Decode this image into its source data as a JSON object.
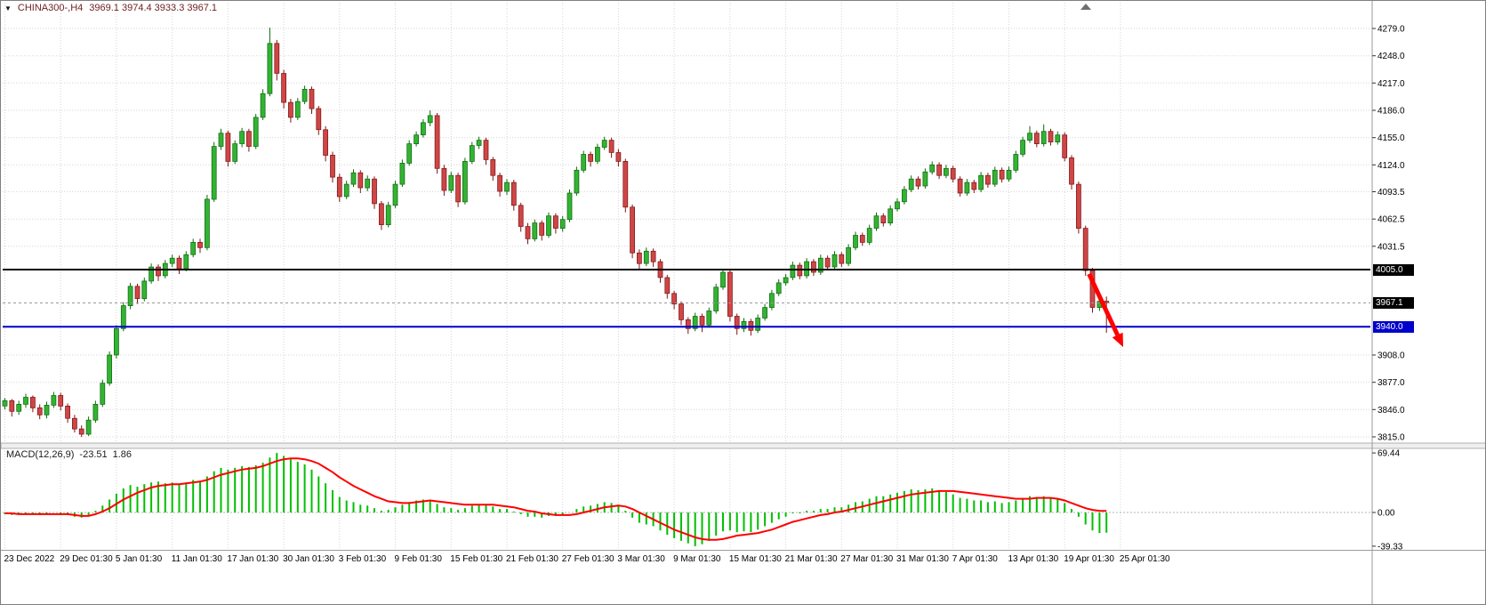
{
  "header": {
    "collapse_icon": "▼",
    "symbol_period": "CHINA300-,H4",
    "ohlc": "3969.1 3974.4 3933.3 3967.1"
  },
  "price_tags": {
    "resistance": "4005.0",
    "current": "3967.1",
    "support": "3940.0"
  },
  "chart_data": {
    "type": "candlestick",
    "symbol": "CHINA300-",
    "timeframe": "H4",
    "last_bar": {
      "open": 3969.1,
      "high": 3974.4,
      "low": 3933.3,
      "close": 3967.1
    },
    "price_axis": {
      "min": 3815.0,
      "max": 4279.0,
      "ticks": [
        4279.0,
        4248.0,
        4217.0,
        4186.0,
        4155.0,
        4124.0,
        4093.5,
        4062.5,
        4031.5,
        3908.0,
        3877.0,
        3846.0,
        3815.0
      ]
    },
    "hlines": [
      {
        "name": "resistance-line",
        "price": 4005.0,
        "color": "#000000",
        "width": 2,
        "dash": ""
      },
      {
        "name": "current-price-line",
        "price": 3967.1,
        "color": "#9a9a9a",
        "width": 1,
        "dash": "3 3"
      },
      {
        "name": "support-line",
        "price": 3940.0,
        "color": "#0000cc",
        "width": 2,
        "dash": ""
      }
    ],
    "time_axis": {
      "labels": [
        "23 Dec 2022",
        "29 Dec 01:30",
        "5 Jan 01:30",
        "11 Jan 01:30",
        "17 Jan 01:30",
        "30 Jan 01:30",
        "3 Feb 01:30",
        "9 Feb 01:30",
        "15 Feb 01:30",
        "21 Feb 01:30",
        "27 Feb 01:30",
        "3 Mar 01:30",
        "9 Mar 01:30",
        "15 Mar 01:30",
        "21 Mar 01:30",
        "27 Mar 01:30",
        "31 Mar 01:30",
        "7 Apr 01:30",
        "13 Apr 01:30",
        "19 Apr 01:30",
        "25 Apr 01:30"
      ]
    },
    "colors": {
      "up_fill": "#33b333",
      "up_edge": "#0e6b0e",
      "down_fill": "#cf4646",
      "down_edge": "#801515",
      "grid": "#d6d6d6",
      "axis_text": "#000000"
    },
    "arrow": {
      "color": "#ff0000",
      "from": {
        "bar": 155.5,
        "price": 4000
      },
      "to": {
        "bar": 160.4,
        "price": 3917
      }
    },
    "candles": [
      [
        3850,
        3859,
        3846,
        3856
      ],
      [
        3856,
        3858,
        3838,
        3844
      ],
      [
        3844,
        3856,
        3840,
        3852
      ],
      [
        3852,
        3864,
        3848,
        3860
      ],
      [
        3860,
        3862,
        3843,
        3848
      ],
      [
        3848,
        3852,
        3835,
        3840
      ],
      [
        3840,
        3855,
        3836,
        3851
      ],
      [
        3851,
        3866,
        3848,
        3862
      ],
      [
        3862,
        3865,
        3845,
        3850
      ],
      [
        3850,
        3853,
        3831,
        3836
      ],
      [
        3836,
        3840,
        3820,
        3824
      ],
      [
        3824,
        3828,
        3815,
        3818
      ],
      [
        3818,
        3838,
        3816,
        3834
      ],
      [
        3834,
        3856,
        3831,
        3852
      ],
      [
        3852,
        3880,
        3849,
        3876
      ],
      [
        3876,
        3912,
        3873,
        3908
      ],
      [
        3908,
        3942,
        3904,
        3938
      ],
      [
        3938,
        3968,
        3935,
        3964
      ],
      [
        3964,
        3990,
        3960,
        3986
      ],
      [
        3986,
        3989,
        3966,
        3972
      ],
      [
        3972,
        3996,
        3969,
        3992
      ],
      [
        3992,
        4012,
        3989,
        4008
      ],
      [
        4008,
        4011,
        3992,
        3998
      ],
      [
        3998,
        4016,
        3995,
        4012
      ],
      [
        4012,
        4022,
        4008,
        4018
      ],
      [
        4018,
        4021,
        4000,
        4006
      ],
      [
        4006,
        4026,
        4003,
        4022
      ],
      [
        4022,
        4040,
        4019,
        4036
      ],
      [
        4036,
        4040,
        4024,
        4030
      ],
      [
        4030,
        4090,
        4027,
        4085
      ],
      [
        4085,
        4150,
        4082,
        4145
      ],
      [
        4145,
        4165,
        4141,
        4160
      ],
      [
        4160,
        4163,
        4122,
        4128
      ],
      [
        4128,
        4152,
        4125,
        4148
      ],
      [
        4148,
        4166,
        4144,
        4162
      ],
      [
        4162,
        4165,
        4139,
        4145
      ],
      [
        4145,
        4182,
        4142,
        4178
      ],
      [
        4178,
        4210,
        4175,
        4205
      ],
      [
        4205,
        4280,
        4202,
        4262
      ],
      [
        4262,
        4266,
        4220,
        4228
      ],
      [
        4228,
        4232,
        4188,
        4195
      ],
      [
        4195,
        4199,
        4172,
        4178
      ],
      [
        4178,
        4200,
        4175,
        4196
      ],
      [
        4196,
        4214,
        4193,
        4210
      ],
      [
        4210,
        4213,
        4182,
        4188
      ],
      [
        4188,
        4191,
        4158,
        4164
      ],
      [
        4164,
        4168,
        4128,
        4135
      ],
      [
        4135,
        4139,
        4104,
        4110
      ],
      [
        4110,
        4114,
        4082,
        4088
      ],
      [
        4088,
        4106,
        4085,
        4102
      ],
      [
        4102,
        4119,
        4099,
        4115
      ],
      [
        4115,
        4118,
        4092,
        4098
      ],
      [
        4098,
        4112,
        4094,
        4108
      ],
      [
        4108,
        4111,
        4074,
        4080
      ],
      [
        4080,
        4083,
        4050,
        4056
      ],
      [
        4056,
        4082,
        4053,
        4078
      ],
      [
        4078,
        4106,
        4075,
        4102
      ],
      [
        4102,
        4130,
        4099,
        4126
      ],
      [
        4126,
        4152,
        4123,
        4148
      ],
      [
        4148,
        4162,
        4145,
        4158
      ],
      [
        4158,
        4176,
        4155,
        4172
      ],
      [
        4172,
        4186,
        4168,
        4180
      ],
      [
        4180,
        4183,
        4114,
        4120
      ],
      [
        4120,
        4124,
        4089,
        4095
      ],
      [
        4095,
        4116,
        4092,
        4112
      ],
      [
        4112,
        4115,
        4076,
        4082
      ],
      [
        4082,
        4132,
        4079,
        4128
      ],
      [
        4128,
        4150,
        4125,
        4146
      ],
      [
        4146,
        4156,
        4142,
        4152
      ],
      [
        4152,
        4155,
        4124,
        4130
      ],
      [
        4130,
        4133,
        4106,
        4112
      ],
      [
        4112,
        4115,
        4088,
        4094
      ],
      [
        4094,
        4108,
        4090,
        4104
      ],
      [
        4104,
        4107,
        4072,
        4078
      ],
      [
        4078,
        4081,
        4048,
        4054
      ],
      [
        4054,
        4058,
        4034,
        4040
      ],
      [
        4040,
        4062,
        4037,
        4058
      ],
      [
        4058,
        4061,
        4038,
        4044
      ],
      [
        4044,
        4070,
        4041,
        4066
      ],
      [
        4066,
        4069,
        4046,
        4052
      ],
      [
        4052,
        4066,
        4048,
        4062
      ],
      [
        4062,
        4096,
        4059,
        4092
      ],
      [
        4092,
        4122,
        4089,
        4118
      ],
      [
        4118,
        4140,
        4115,
        4136
      ],
      [
        4136,
        4139,
        4122,
        4128
      ],
      [
        4128,
        4148,
        4125,
        4144
      ],
      [
        4144,
        4156,
        4141,
        4152
      ],
      [
        4152,
        4155,
        4132,
        4138
      ],
      [
        4138,
        4142,
        4122,
        4128
      ],
      [
        4128,
        4131,
        4070,
        4076
      ],
      [
        4076,
        4079,
        4018,
        4024
      ],
      [
        4024,
        4028,
        4006,
        4012
      ],
      [
        4012,
        4030,
        4009,
        4026
      ],
      [
        4026,
        4029,
        4008,
        4014
      ],
      [
        4014,
        4017,
        3990,
        3996
      ],
      [
        3996,
        3999,
        3972,
        3978
      ],
      [
        3978,
        3981,
        3960,
        3966
      ],
      [
        3966,
        3969,
        3942,
        3948
      ],
      [
        3948,
        3951,
        3932,
        3938
      ],
      [
        3938,
        3956,
        3935,
        3952
      ],
      [
        3952,
        3955,
        3934,
        3942
      ],
      [
        3942,
        3962,
        3939,
        3958
      ],
      [
        3958,
        3989,
        3955,
        3985
      ],
      [
        3985,
        4006,
        3982,
        4002
      ],
      [
        4002,
        4005,
        3946,
        3952
      ],
      [
        3952,
        3955,
        3931,
        3938
      ],
      [
        3938,
        3950,
        3934,
        3946
      ],
      [
        3946,
        3949,
        3930,
        3936
      ],
      [
        3936,
        3954,
        3933,
        3950
      ],
      [
        3950,
        3966,
        3947,
        3962
      ],
      [
        3962,
        3982,
        3959,
        3978
      ],
      [
        3978,
        3994,
        3975,
        3990
      ],
      [
        3990,
        4000,
        3987,
        3996
      ],
      [
        3996,
        4014,
        3993,
        4010
      ],
      [
        4010,
        4013,
        3994,
        3998
      ],
      [
        3998,
        4018,
        3995,
        4014
      ],
      [
        4014,
        4017,
        3998,
        4002
      ],
      [
        4002,
        4022,
        3999,
        4018
      ],
      [
        4018,
        4021,
        4004,
        4008
      ],
      [
        4008,
        4026,
        4005,
        4022
      ],
      [
        4022,
        4025,
        4008,
        4012
      ],
      [
        4012,
        4034,
        4009,
        4030
      ],
      [
        4030,
        4048,
        4027,
        4044
      ],
      [
        4044,
        4047,
        4032,
        4036
      ],
      [
        4036,
        4056,
        4033,
        4052
      ],
      [
        4052,
        4070,
        4049,
        4066
      ],
      [
        4066,
        4069,
        4054,
        4058
      ],
      [
        4058,
        4078,
        4055,
        4074
      ],
      [
        4074,
        4086,
        4071,
        4082
      ],
      [
        4082,
        4100,
        4079,
        4096
      ],
      [
        4096,
        4112,
        4093,
        4108
      ],
      [
        4108,
        4111,
        4096,
        4100
      ],
      [
        4100,
        4120,
        4097,
        4116
      ],
      [
        4116,
        4128,
        4113,
        4124
      ],
      [
        4124,
        4127,
        4108,
        4112
      ],
      [
        4112,
        4124,
        4109,
        4120
      ],
      [
        4120,
        4123,
        4104,
        4108
      ],
      [
        4108,
        4111,
        4088,
        4092
      ],
      [
        4092,
        4108,
        4089,
        4104
      ],
      [
        4104,
        4107,
        4092,
        4096
      ],
      [
        4096,
        4116,
        4093,
        4112
      ],
      [
        4112,
        4115,
        4098,
        4102
      ],
      [
        4102,
        4122,
        4099,
        4118
      ],
      [
        4118,
        4121,
        4104,
        4108
      ],
      [
        4108,
        4122,
        4105,
        4118
      ],
      [
        4118,
        4140,
        4115,
        4136
      ],
      [
        4136,
        4156,
        4133,
        4152
      ],
      [
        4152,
        4168,
        4149,
        4160
      ],
      [
        4160,
        4163,
        4144,
        4148
      ],
      [
        4148,
        4170,
        4145,
        4162
      ],
      [
        4162,
        4165,
        4146,
        4150
      ],
      [
        4150,
        4162,
        4147,
        4158
      ],
      [
        4158,
        4161,
        4128,
        4132
      ],
      [
        4132,
        4135,
        4096,
        4102
      ],
      [
        4102,
        4105,
        4046,
        4052
      ],
      [
        4052,
        4055,
        3998,
        4004
      ],
      [
        4004,
        4007,
        3956,
        3962
      ],
      [
        3962,
        3972,
        3958,
        3969.1
      ],
      [
        3969.1,
        3974.4,
        3933.3,
        3967.1
      ]
    ],
    "macd": {
      "label": "MACD(12,26,9)",
      "main_value": "-23.51",
      "signal_value": "1.86",
      "axis_labels": [
        "69.44",
        "0.00",
        "-39.33"
      ],
      "axis_values": [
        69.44,
        0,
        -39.33
      ],
      "hist_color": "#00c000",
      "signal_color": "#ff0000",
      "histogram": [
        -2,
        -3,
        -2,
        -1,
        -2,
        -3,
        -1,
        0,
        -1,
        -3,
        -5,
        -6,
        -3,
        2,
        8,
        15,
        22,
        28,
        32,
        30,
        33,
        35,
        36,
        34,
        35,
        33,
        35,
        38,
        37,
        42,
        48,
        52,
        50,
        52,
        54,
        53,
        55,
        58,
        64,
        69.44,
        66,
        62,
        59,
        56,
        50,
        42,
        34,
        26,
        18,
        14,
        12,
        9,
        8,
        5,
        2,
        3,
        6,
        9,
        12,
        14,
        15,
        15,
        10,
        6,
        5,
        3,
        5,
        8,
        10,
        9,
        7,
        4,
        4,
        1,
        -2,
        -5,
        -5,
        -6,
        -4,
        -4,
        -3,
        0,
        4,
        7,
        8,
        10,
        12,
        11,
        9,
        2,
        -6,
        -12,
        -14,
        -16,
        -21,
        -26,
        -30,
        -33,
        -36,
        -39.33,
        -37,
        -33,
        -27,
        -22,
        -21,
        -23,
        -22,
        -23,
        -20,
        -16,
        -12,
        -8,
        -5,
        -1,
        -1,
        2,
        2,
        4,
        4,
        6,
        6,
        9,
        12,
        13,
        16,
        19,
        19,
        21,
        23,
        25,
        27,
        26,
        27,
        28,
        25,
        24,
        21,
        17,
        16,
        14,
        14,
        12,
        13,
        11,
        12,
        14,
        17,
        19,
        18,
        19,
        17,
        16,
        11,
        4,
        -5,
        -14,
        -21,
        -24,
        -23.51
      ],
      "signal": [
        -1,
        -1,
        -2,
        -2,
        -2,
        -2,
        -2,
        -2,
        -2,
        -2,
        -3,
        -4,
        -4,
        -2,
        1,
        5,
        10,
        15,
        19,
        23,
        26,
        29,
        31,
        32,
        33,
        33,
        34,
        35,
        36,
        38,
        41,
        44,
        46,
        48,
        50,
        51,
        52,
        54,
        57,
        60,
        62,
        63,
        63,
        62,
        60,
        57,
        52,
        47,
        41,
        36,
        31,
        27,
        23,
        19,
        16,
        13,
        12,
        11,
        11,
        12,
        13,
        14,
        13,
        12,
        11,
        10,
        9,
        9,
        9,
        9,
        9,
        8,
        7,
        6,
        4,
        2,
        1,
        -1,
        -2,
        -3,
        -3,
        -3,
        -2,
        0,
        2,
        4,
        6,
        7,
        8,
        7,
        4,
        0,
        -4,
        -8,
        -12,
        -16,
        -20,
        -23,
        -26,
        -29,
        -31,
        -32,
        -32,
        -31,
        -29,
        -27,
        -26,
        -25,
        -24,
        -22,
        -20,
        -17,
        -14,
        -11,
        -9,
        -7,
        -5,
        -3,
        -2,
        0,
        1,
        3,
        5,
        7,
        9,
        11,
        13,
        15,
        17,
        19,
        21,
        22,
        23,
        24,
        25,
        25,
        25,
        24,
        23,
        22,
        21,
        20,
        19,
        18,
        17,
        16,
        16,
        16,
        17,
        17,
        17,
        16,
        14,
        11,
        8,
        5,
        3,
        2,
        1.86
      ]
    }
  }
}
